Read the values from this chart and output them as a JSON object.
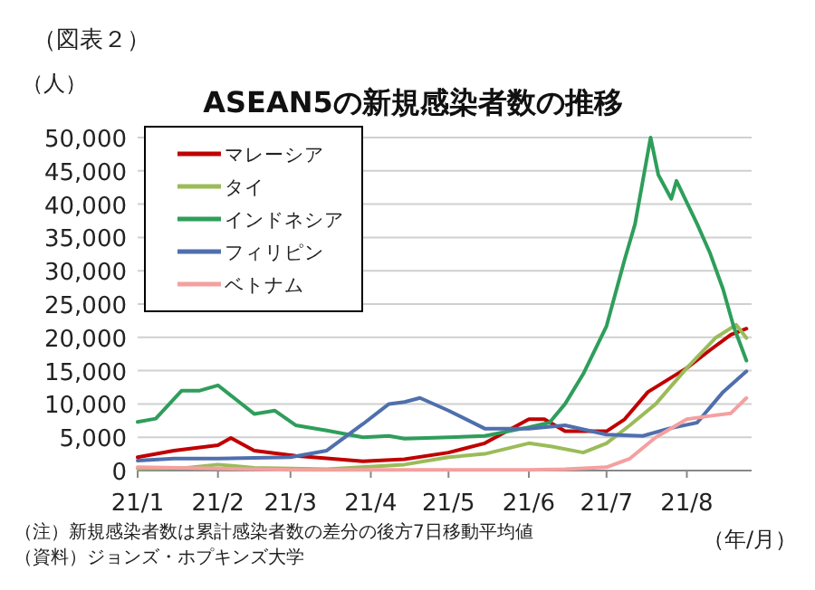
{
  "chart_data": {
    "type": "line",
    "title": "ASEAN5の新規感染者数の推移",
    "ylabel": "（人）",
    "xlabel": "（年/月）",
    "annotations": [
      "（図表２）",
      "（注）新規感染者数は累計感染者数の差分の後方7日移動平均値",
      "（資料）ジョンズ・ホプキンズ大学"
    ],
    "xlim": [
      "--01-01",
      "--08-26"
    ],
    "xticks": [
      {
        "value": "--01-01",
        "label": "21/1"
      },
      {
        "value": "--02-01",
        "label": "21/2"
      },
      {
        "value": "--03-01",
        "label": "21/3"
      },
      {
        "value": "--04-01",
        "label": "21/4"
      },
      {
        "value": "--05-01",
        "label": "21/5"
      },
      {
        "value": "--06-01",
        "label": "21/6"
      },
      {
        "value": "--07-01",
        "label": "21/7"
      },
      {
        "value": "--08-01",
        "label": "21/8"
      }
    ],
    "ylim": [
      0,
      50000
    ],
    "yticks": [
      {
        "value": 0,
        "label": "0"
      },
      {
        "value": 5000,
        "label": "5,000"
      },
      {
        "value": 10000,
        "label": "10,000"
      },
      {
        "value": 15000,
        "label": "15,000"
      },
      {
        "value": 20000,
        "label": "20,000"
      },
      {
        "value": 25000,
        "label": "25,000"
      },
      {
        "value": 30000,
        "label": "30,000"
      },
      {
        "value": 35000,
        "label": "35,000"
      },
      {
        "value": 40000,
        "label": "40,000"
      },
      {
        "value": 45000,
        "label": "45,000"
      },
      {
        "value": 50000,
        "label": "50,000"
      }
    ],
    "grid": "y",
    "legend": "top left",
    "marker": "none",
    "line_style": "solid",
    "series": [
      {
        "name": "マレーシア",
        "color": "#c00000",
        "x": [
          "--01-01",
          "--01-15",
          "--02-01",
          "--02-06",
          "--02-15",
          "--03-03",
          "--03-29",
          "--04-14",
          "--05-01",
          "--05-15",
          "--06-01",
          "--06-07",
          "--06-15",
          "--07-01",
          "--07-08",
          "--07-17",
          "--08-01",
          "--08-10",
          "--08-18",
          "--08-24"
        ],
        "values": [
          2000,
          3000,
          3800,
          4900,
          3000,
          2200,
          1400,
          1700,
          2700,
          4100,
          7700,
          7700,
          5900,
          5900,
          7700,
          11800,
          15400,
          18100,
          20400,
          21300
        ]
      },
      {
        "name": "タイ",
        "color": "#9bbb59",
        "x": [
          "--01-01",
          "--01-20",
          "--02-01",
          "--02-15",
          "--03-15",
          "--04-14",
          "--05-01",
          "--05-15",
          "--06-01",
          "--06-10",
          "--06-22",
          "--07-01",
          "--07-10",
          "--07-20",
          "--08-01",
          "--08-12",
          "--08-20",
          "--08-24"
        ],
        "values": [
          300,
          400,
          900,
          400,
          200,
          900,
          2000,
          2500,
          4100,
          3600,
          2700,
          4100,
          6800,
          10000,
          15400,
          19900,
          21900,
          19900
        ]
      },
      {
        "name": "インドネシア",
        "color": "#2e9e5b",
        "x": [
          "--01-01",
          "--01-08",
          "--01-18",
          "--01-25",
          "--02-01",
          "--02-15",
          "--02-23",
          "--03-03",
          "--03-15",
          "--03-29",
          "--04-08",
          "--04-14",
          "--05-01",
          "--05-15",
          "--06-01",
          "--06-09",
          "--06-15",
          "--06-22",
          "--07-01",
          "--07-08",
          "--07-12",
          "--07-18",
          "--07-21",
          "--07-26",
          "--07-28",
          "--08-05",
          "--08-10",
          "--08-15",
          "--08-19",
          "--08-24"
        ],
        "values": [
          7300,
          7800,
          12000,
          12000,
          12800,
          8500,
          9000,
          6800,
          6000,
          5000,
          5200,
          4800,
          5000,
          5200,
          6500,
          7200,
          10000,
          14500,
          21700,
          31700,
          37000,
          50000,
          44400,
          40800,
          43500,
          37000,
          32600,
          27200,
          21700,
          16500
        ]
      },
      {
        "name": "フィリピン",
        "color": "#4f6fad",
        "x": [
          "--01-01",
          "--01-15",
          "--02-01",
          "--03-01",
          "--03-15",
          "--03-29",
          "--04-08",
          "--04-14",
          "--04-20",
          "--05-01",
          "--05-15",
          "--06-01",
          "--06-15",
          "--07-01",
          "--07-15",
          "--07-25",
          "--08-05",
          "--08-15",
          "--08-24"
        ],
        "values": [
          1500,
          1800,
          1800,
          2000,
          3000,
          7000,
          10000,
          10300,
          10900,
          9000,
          6300,
          6300,
          6800,
          5400,
          5200,
          6300,
          7200,
          11800,
          14900
        ]
      },
      {
        "name": "ベトナム",
        "color": "#f4a0a0",
        "x": [
          "--01-01",
          "--02-01",
          "--03-01",
          "--04-01",
          "--05-01",
          "--06-01",
          "--06-15",
          "--07-01",
          "--07-10",
          "--07-20",
          "--08-01",
          "--08-10",
          "--08-18",
          "--08-24"
        ],
        "values": [
          500,
          300,
          100,
          100,
          100,
          100,
          200,
          500,
          1800,
          5000,
          7700,
          8200,
          8600,
          10900
        ]
      }
    ]
  }
}
